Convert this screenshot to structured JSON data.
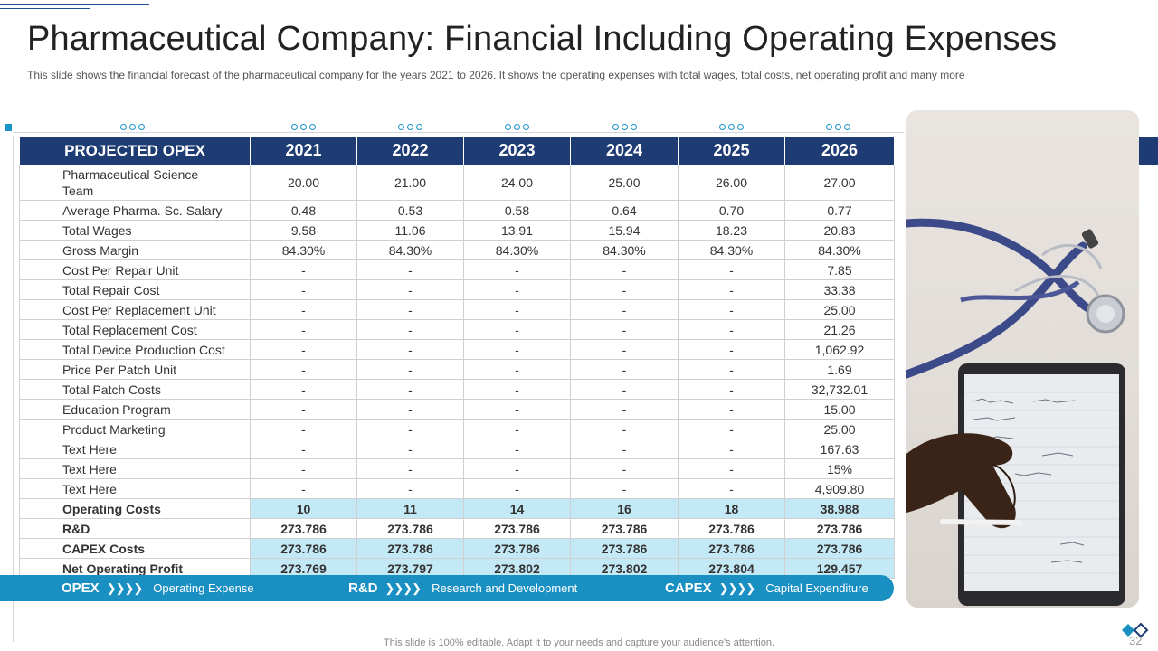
{
  "slide": {
    "title": "Pharmaceutical Company: Financial Including Operating Expenses",
    "subtitle": "This slide shows the financial forecast of the pharmaceutical company for the years 2021 to 2026. It shows the operating expenses with total wages, total costs, net operating profit and many more",
    "footer": "This slide is 100% editable. Adapt it to your needs and capture your audience's attention.",
    "page_number": "32"
  },
  "table": {
    "header": [
      "PROJECTED OPEX",
      "2021",
      "2022",
      "2023",
      "2024",
      "2025",
      "2026"
    ],
    "rows": [
      {
        "label": "Pharmaceutical Science Team",
        "values": [
          "20.00",
          "21.00",
          "24.00",
          "25.00",
          "26.00",
          "27.00"
        ]
      },
      {
        "label": "Average Pharma. Sc. Salary",
        "values": [
          "0.48",
          "0.53",
          "0.58",
          "0.64",
          "0.70",
          "0.77"
        ]
      },
      {
        "label": "Total Wages",
        "values": [
          "9.58",
          "11.06",
          "13.91",
          "15.94",
          "18.23",
          "20.83"
        ]
      },
      {
        "label": "Gross Margin",
        "values": [
          "84.30%",
          "84.30%",
          "84.30%",
          "84.30%",
          "84.30%",
          "84.30%"
        ]
      },
      {
        "label": "Cost Per Repair Unit",
        "values": [
          "-",
          "-",
          "-",
          "-",
          "-",
          "7.85"
        ]
      },
      {
        "label": "Total Repair Cost",
        "values": [
          "-",
          "-",
          "-",
          "-",
          "-",
          "33.38"
        ]
      },
      {
        "label": "Cost Per Replacement Unit",
        "values": [
          "-",
          "-",
          "-",
          "-",
          "-",
          "25.00"
        ]
      },
      {
        "label": "Total Replacement Cost",
        "values": [
          "-",
          "-",
          "-",
          "-",
          "-",
          "21.26"
        ]
      },
      {
        "label": "Total Device Production Cost",
        "values": [
          "-",
          "-",
          "-",
          "-",
          "-",
          "1,062.92"
        ]
      },
      {
        "label": "Price Per Patch Unit",
        "values": [
          "-",
          "-",
          "-",
          "-",
          "-",
          "1.69"
        ]
      },
      {
        "label": "Total Patch Costs",
        "values": [
          "-",
          "-",
          "-",
          "-",
          "-",
          "32,732.01"
        ]
      },
      {
        "label": "Education Program",
        "values": [
          "-",
          "-",
          "-",
          "-",
          "-",
          "15.00"
        ]
      },
      {
        "label": "Product Marketing",
        "values": [
          "-",
          "-",
          "-",
          "-",
          "-",
          "25.00"
        ]
      },
      {
        "label": "Text Here",
        "values": [
          "-",
          "-",
          "-",
          "-",
          "-",
          "167.63"
        ]
      },
      {
        "label": "Text Here",
        "values": [
          "-",
          "-",
          "-",
          "-",
          "-",
          "15%"
        ]
      },
      {
        "label": "Text Here",
        "values": [
          "-",
          "-",
          "-",
          "-",
          "-",
          "4,909.80"
        ]
      },
      {
        "label": "Operating Costs",
        "values": [
          "10",
          "11",
          "14",
          "16",
          "18",
          "38.988"
        ]
      },
      {
        "label": "R&D",
        "values": [
          "273.786",
          "273.786",
          "273.786",
          "273.786",
          "273.786",
          "273.786"
        ]
      },
      {
        "label": "CAPEX Costs",
        "values": [
          "273.786",
          "273.786",
          "273.786",
          "273.786",
          "273.786",
          "273.786"
        ]
      },
      {
        "label": "Net Operating Profit",
        "values": [
          "273.769",
          "273.797",
          "273.802",
          "273.802",
          "273.804",
          "129.457"
        ]
      }
    ]
  },
  "legend": [
    {
      "key": "OPEX",
      "chevrons": "❯❯❯❯",
      "text": "Operating Expense"
    },
    {
      "key": "R&D",
      "chevrons": "❯❯❯❯",
      "text": "Research and Development"
    },
    {
      "key": "CAPEX",
      "chevrons": "❯❯❯❯",
      "text": "Capital Expenditure"
    }
  ],
  "colors": {
    "header_bg": "#1f3b73",
    "highlight_bg": "#c4e9f6",
    "legend_bg": "#1a8fc2",
    "accent": "#1a93c9"
  }
}
